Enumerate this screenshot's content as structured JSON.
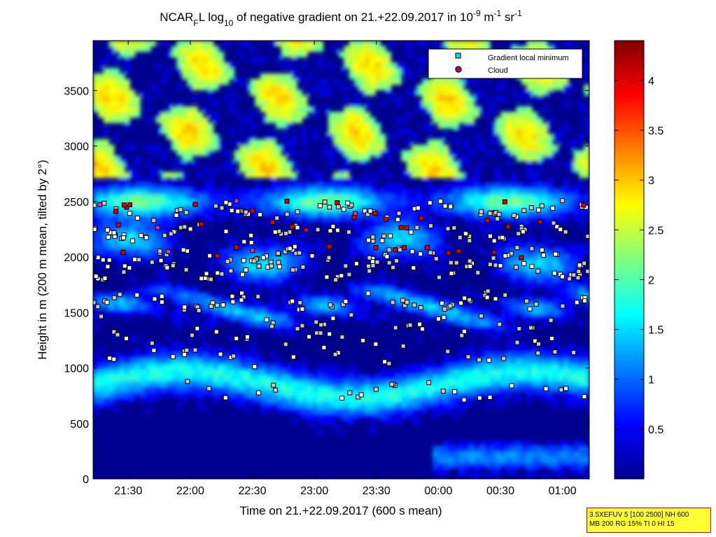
{
  "chart_data": {
    "type": "heatmap",
    "title": {
      "main1": "NCAR",
      "sub1": "F",
      "main2": "L log",
      "sub2": "10",
      "main3": " of negative gradient on 21.+22.09.2017 in 10",
      "sup1": "-9",
      "main4": " m",
      "sup2": "-1",
      "main5": " sr",
      "sup3": "-1"
    },
    "xlabel": "Time on 21.+22.09.2017 (600 s mean)",
    "ylabel": "Height in m (200 m mean, tilted by 2°)",
    "x_ticks": [
      "21:30",
      "22:00",
      "22:30",
      "23:00",
      "23:30",
      "00:00",
      "00:30",
      "01:00"
    ],
    "y_ticks": [
      "0",
      "500",
      "1000",
      "1500",
      "2000",
      "2500",
      "3000",
      "3500"
    ],
    "y_tick_values": [
      0,
      500,
      1000,
      1500,
      2000,
      2500,
      3000,
      3500
    ],
    "xlim_minutes_from_2100": [
      13,
      253
    ],
    "ylim": [
      0,
      3950
    ],
    "colorbar": {
      "ticks": [
        "0.5",
        "1",
        "1.5",
        "2",
        "2.5",
        "3",
        "3.5",
        "4"
      ],
      "tick_values": [
        0.5,
        1,
        1.5,
        2,
        2.5,
        3,
        3.5,
        4
      ],
      "range": [
        0,
        4.4
      ],
      "colormap": "jet"
    },
    "legend": {
      "position": "top-right",
      "entries": [
        {
          "label": "Gradient local minimum",
          "marker": "square",
          "color": "#00e5e5"
        },
        {
          "label": "Cloud",
          "marker": "circle",
          "color": "#e00000",
          "edge": "#0000cc"
        }
      ]
    },
    "layer_heights_m": {
      "gradient_min_bands": [
        2420,
        2220,
        2000,
        1880,
        1600,
        1420,
        1250,
        1100,
        800
      ],
      "cloud_band": [
        2450,
        2300,
        2050
      ]
    }
  },
  "info_box": {
    "line1": "3.5XEFUV 5 [100 2500] NH 600",
    "line2": "MB 200 RG 15% TI 0 HI 15"
  },
  "colors": {
    "background_low": "#00008f",
    "box_border": "#e00000",
    "box_fill": "#ffff33"
  }
}
